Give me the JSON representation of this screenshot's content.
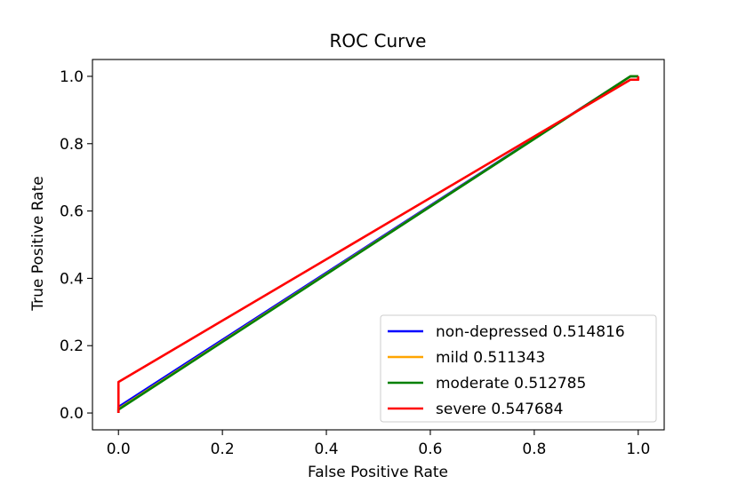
{
  "chart_data": {
    "type": "line",
    "title": "ROC Curve",
    "xlabel": "False Positive Rate",
    "ylabel": "True Positive Rate",
    "xlim": [
      -0.05,
      1.05
    ],
    "ylim": [
      -0.05,
      1.05
    ],
    "xticks": [
      0.0,
      0.2,
      0.4,
      0.6,
      0.8,
      1.0
    ],
    "yticks": [
      0.0,
      0.2,
      0.4,
      0.6,
      0.8,
      1.0
    ],
    "xtick_labels": [
      "0.0",
      "0.2",
      "0.4",
      "0.6",
      "0.8",
      "1.0"
    ],
    "ytick_labels": [
      "0.0",
      "0.2",
      "0.4",
      "0.6",
      "0.8",
      "1.0"
    ],
    "grid": false,
    "legend_position": "lower-right",
    "series": [
      {
        "name": "non-depressed 0.514816",
        "color": "#0000ff",
        "x": [
          0.0,
          0.0,
          0.985,
          0.985,
          1.0,
          1.0
        ],
        "y": [
          0.0,
          0.018,
          1.0,
          1.0,
          1.0,
          1.0
        ]
      },
      {
        "name": "mild 0.511343",
        "color": "#ffa500",
        "x": [
          0.0,
          0.0,
          0.985,
          0.985,
          1.0,
          1.0
        ],
        "y": [
          0.0,
          0.012,
          1.0,
          1.0,
          1.0,
          1.0
        ]
      },
      {
        "name": "moderate 0.512785",
        "color": "#008000",
        "x": [
          0.0,
          0.0,
          0.985,
          0.985,
          1.0,
          1.0
        ],
        "y": [
          0.0,
          0.01,
          1.0,
          1.0,
          1.0,
          1.0
        ]
      },
      {
        "name": "severe 0.547684",
        "color": "#ff0000",
        "x": [
          0.0,
          0.0,
          0.985,
          0.985,
          1.0,
          1.0
        ],
        "y": [
          0.0,
          0.092,
          0.99,
          0.99,
          0.99,
          1.0
        ]
      }
    ]
  }
}
